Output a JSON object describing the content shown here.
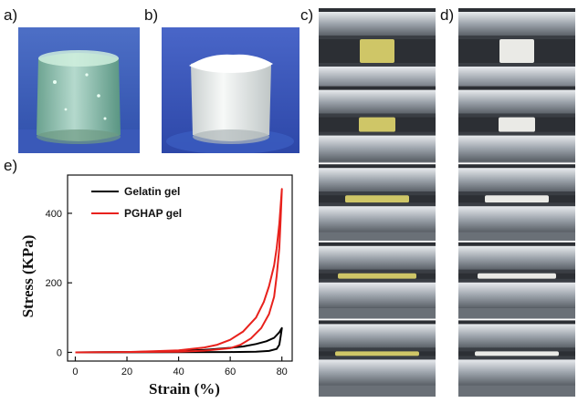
{
  "panels": {
    "a": {
      "label": "a)"
    },
    "b": {
      "label": "b)"
    },
    "c": {
      "label": "c)"
    },
    "d": {
      "label": "d)"
    },
    "e": {
      "label": "e)"
    }
  },
  "compression_series": {
    "frame_count": 5,
    "c_sample_color": "#d8cf6a",
    "d_sample_color": "#f4f4f0"
  },
  "chart_data": {
    "type": "line",
    "xlabel": "Strain  (%)",
    "ylabel": "Stress  (KPa)",
    "xlim": [
      -3,
      84
    ],
    "ylim": [
      -25,
      510
    ],
    "xticks": [
      0,
      20,
      40,
      60,
      80
    ],
    "yticks": [
      0,
      200,
      400
    ],
    "legend_position": "top-left",
    "series": [
      {
        "name": "Gelatin gel",
        "color": "#000000",
        "loading": [
          [
            0,
            0
          ],
          [
            10,
            0.5
          ],
          [
            20,
            1
          ],
          [
            30,
            2
          ],
          [
            40,
            4
          ],
          [
            50,
            7
          ],
          [
            60,
            13
          ],
          [
            65,
            17
          ],
          [
            70,
            24
          ],
          [
            74,
            32
          ],
          [
            77,
            42
          ],
          [
            79,
            58
          ],
          [
            80,
            70
          ]
        ],
        "unloading": [
          [
            80,
            70
          ],
          [
            79.5,
            45
          ],
          [
            79,
            22
          ],
          [
            78,
            10
          ],
          [
            75,
            4
          ],
          [
            70,
            2
          ],
          [
            60,
            1
          ],
          [
            40,
            0.5
          ],
          [
            20,
            0.2
          ],
          [
            0,
            0
          ]
        ]
      },
      {
        "name": "PGHAP gel",
        "color": "#e8211c",
        "loading": [
          [
            0,
            0
          ],
          [
            10,
            0.5
          ],
          [
            20,
            1
          ],
          [
            30,
            3
          ],
          [
            40,
            6
          ],
          [
            50,
            14
          ],
          [
            55,
            22
          ],
          [
            60,
            36
          ],
          [
            65,
            60
          ],
          [
            70,
            100
          ],
          [
            73,
            145
          ],
          [
            75,
            190
          ],
          [
            77,
            250
          ],
          [
            78,
            300
          ],
          [
            79,
            370
          ],
          [
            80,
            470
          ]
        ],
        "unloading": [
          [
            80,
            470
          ],
          [
            79.5,
            380
          ],
          [
            79,
            300
          ],
          [
            78,
            220
          ],
          [
            77,
            160
          ],
          [
            75,
            110
          ],
          [
            72,
            70
          ],
          [
            68,
            40
          ],
          [
            64,
            22
          ],
          [
            60,
            12
          ],
          [
            50,
            5
          ],
          [
            40,
            2
          ],
          [
            20,
            1
          ],
          [
            0,
            0
          ]
        ]
      }
    ]
  }
}
